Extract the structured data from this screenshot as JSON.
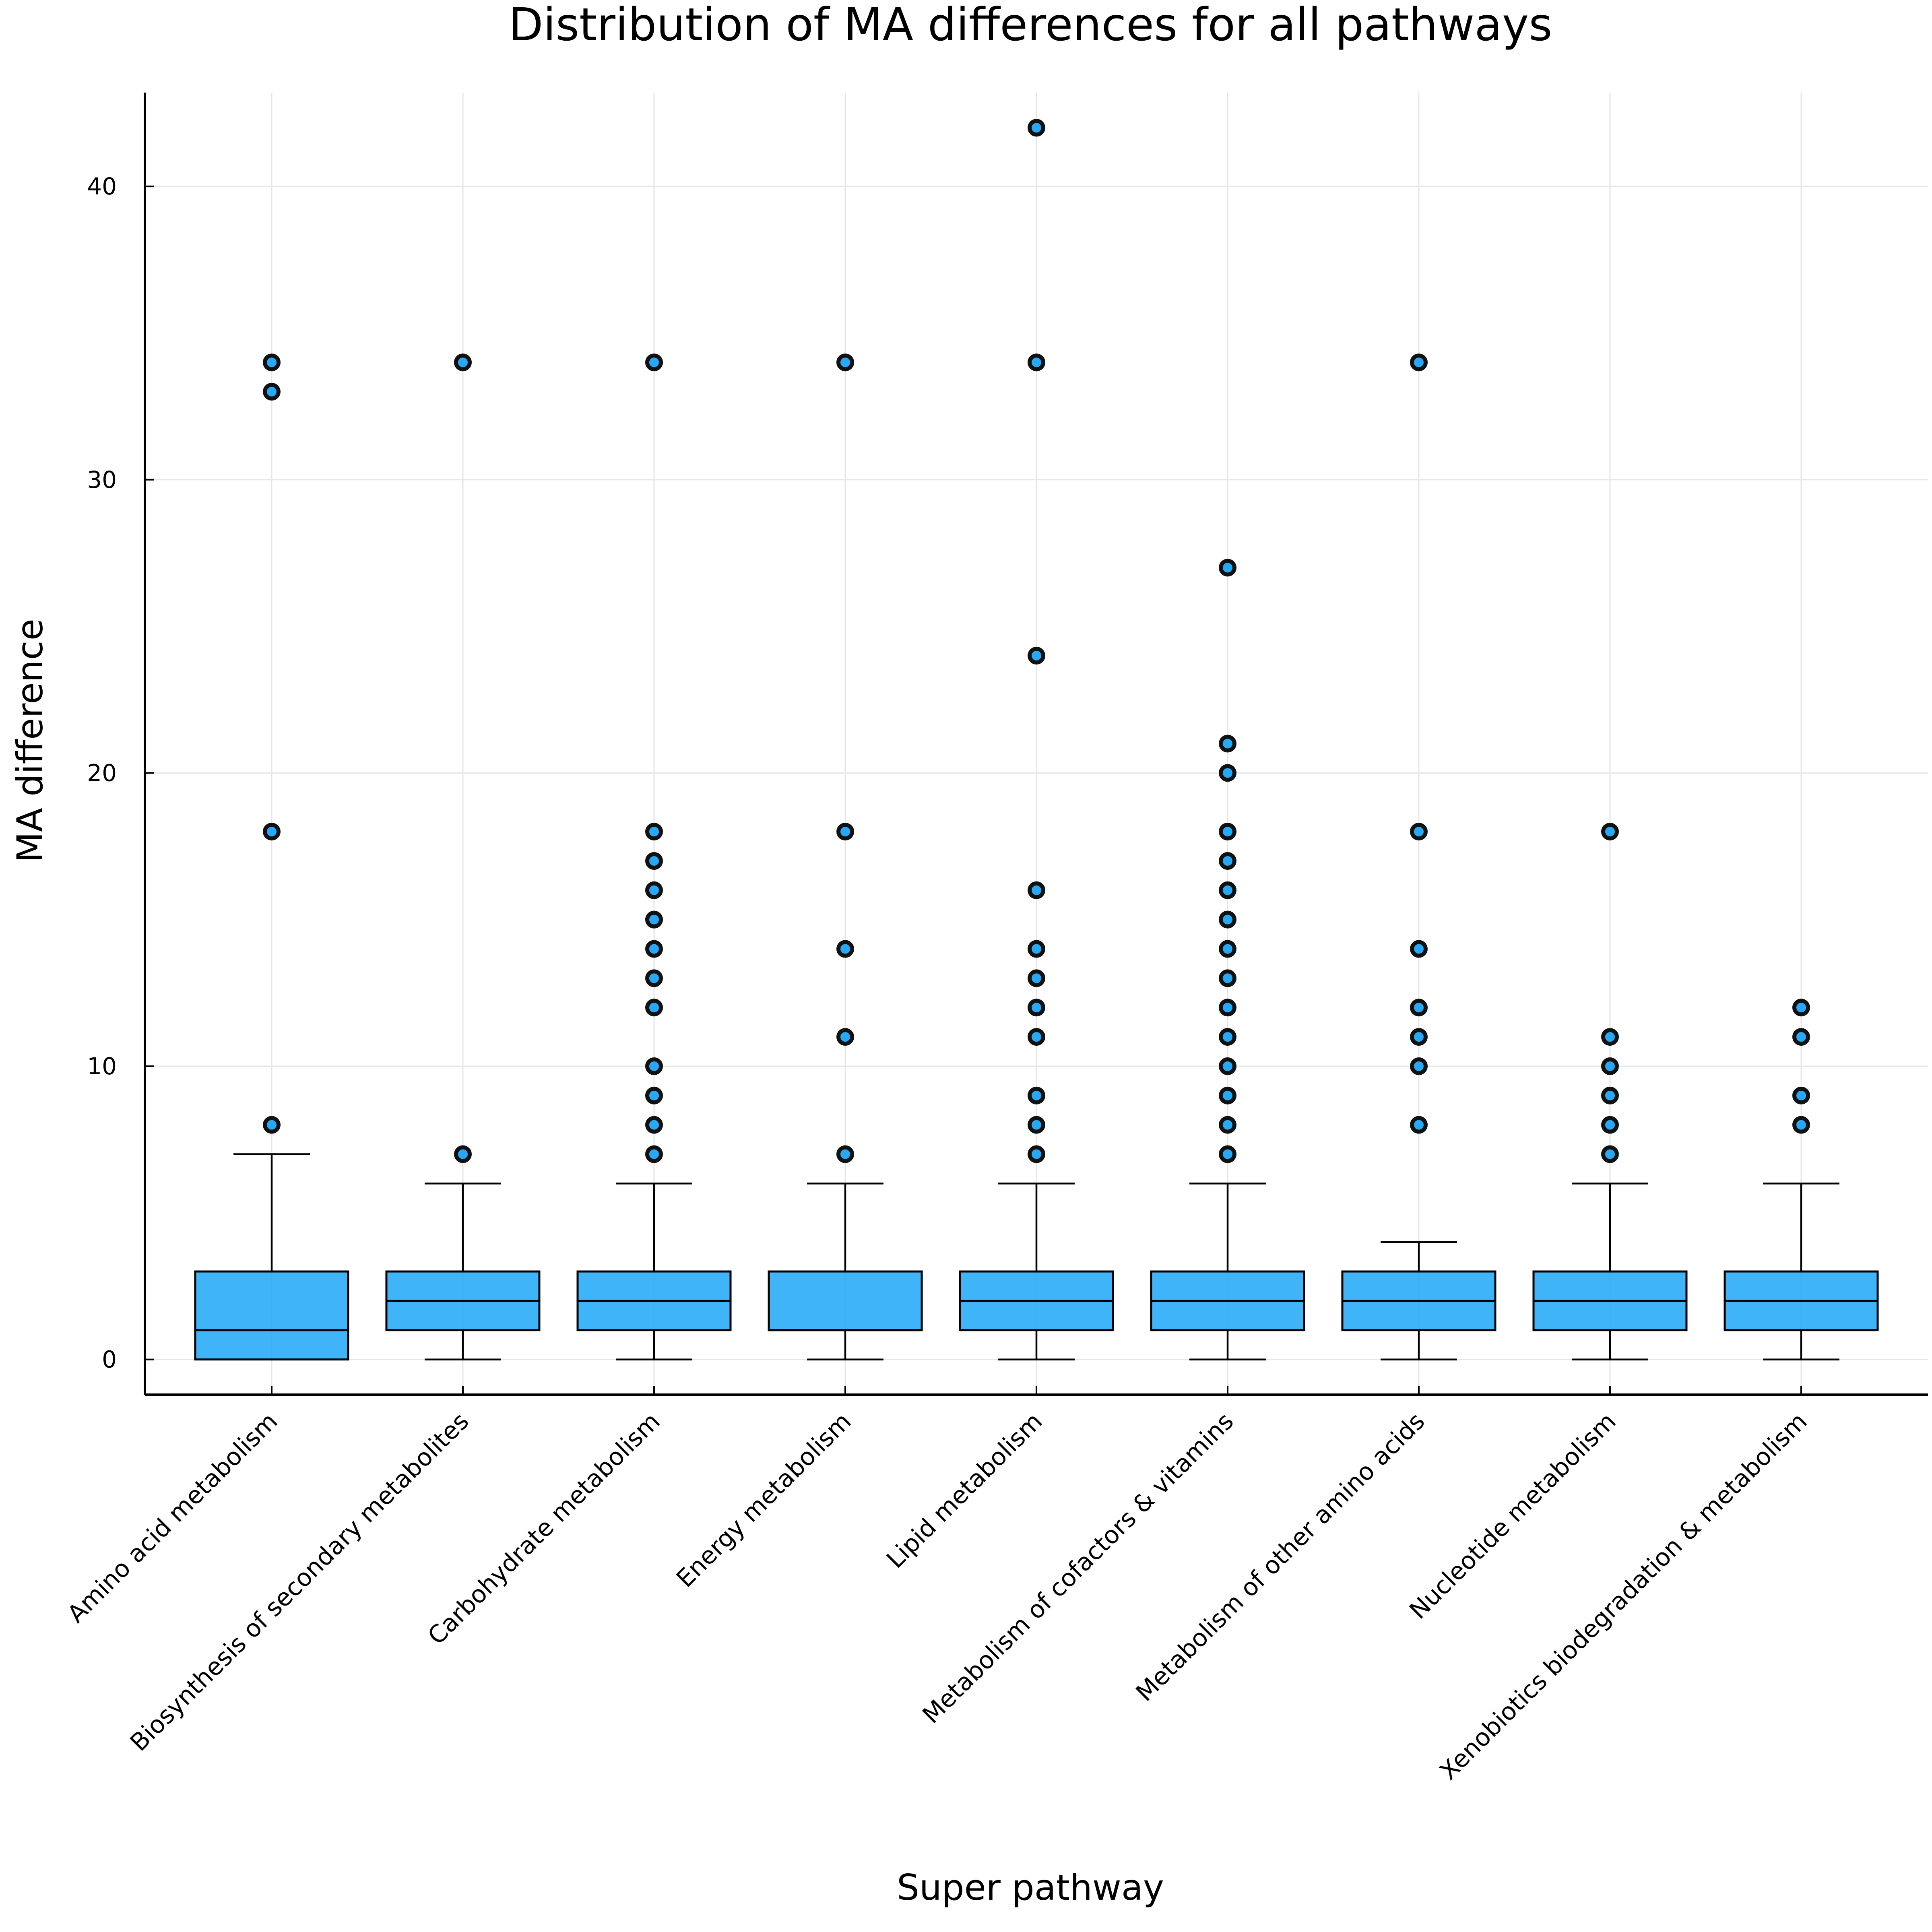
{
  "chart_data": {
    "type": "box",
    "title": "Distribution of MA differences for all pathways",
    "xlabel": "Super pathway",
    "ylabel": "MA difference",
    "ylim": [
      -1.2,
      43.2
    ],
    "yticks": [
      0,
      10,
      20,
      30,
      40
    ],
    "grid": true,
    "legend": "none",
    "colors": {
      "box_fill": "#1fa7f7",
      "outlier_fill": "#0ea0f5",
      "outlier_stroke": "#111111"
    },
    "categories": [
      "Amino acid metabolism",
      "Biosynthesis of secondary metabolites",
      "Carbohydrate metabolism",
      "Energy metabolism",
      "Lipid metabolism",
      "Metabolism of cofactors & vitamins",
      "Metabolism of other amino acids",
      "Nucleotide metabolism",
      "Xenobiotics biodegradation & metabolism"
    ],
    "boxes": [
      {
        "whisker_low": 0,
        "q1": 0,
        "median": 1,
        "q3": 3,
        "whisker_high": 7,
        "outliers": [
          8,
          18,
          33,
          34
        ]
      },
      {
        "whisker_low": 0,
        "q1": 1,
        "median": 2,
        "q3": 3,
        "whisker_high": 6,
        "outliers": [
          7,
          34
        ]
      },
      {
        "whisker_low": 0,
        "q1": 1,
        "median": 2,
        "q3": 3,
        "whisker_high": 6,
        "outliers": [
          7,
          8,
          9,
          10,
          12,
          13,
          14,
          15,
          16,
          17,
          18,
          34
        ]
      },
      {
        "whisker_low": 0,
        "q1": 1,
        "median": 1,
        "q3": 3,
        "whisker_high": 6,
        "outliers": [
          7,
          11,
          14,
          18,
          34
        ]
      },
      {
        "whisker_low": 0,
        "q1": 1,
        "median": 2,
        "q3": 3,
        "whisker_high": 6,
        "outliers": [
          7,
          8,
          9,
          11,
          12,
          13,
          14,
          16,
          24,
          34,
          42
        ]
      },
      {
        "whisker_low": 0,
        "q1": 1,
        "median": 2,
        "q3": 3,
        "whisker_high": 6,
        "outliers": [
          7,
          8,
          9,
          10,
          11,
          12,
          13,
          14,
          15,
          16,
          17,
          18,
          20,
          21,
          27
        ]
      },
      {
        "whisker_low": 0,
        "q1": 1,
        "median": 2,
        "q3": 3,
        "whisker_high": 4,
        "outliers": [
          8,
          10,
          11,
          12,
          14,
          18,
          34
        ]
      },
      {
        "whisker_low": 0,
        "q1": 1,
        "median": 2,
        "q3": 3,
        "whisker_high": 6,
        "outliers": [
          7,
          8,
          9,
          10,
          11,
          18
        ]
      },
      {
        "whisker_low": 0,
        "q1": 1,
        "median": 2,
        "q3": 3,
        "whisker_high": 6,
        "outliers": [
          8,
          9,
          11,
          12
        ]
      }
    ]
  }
}
